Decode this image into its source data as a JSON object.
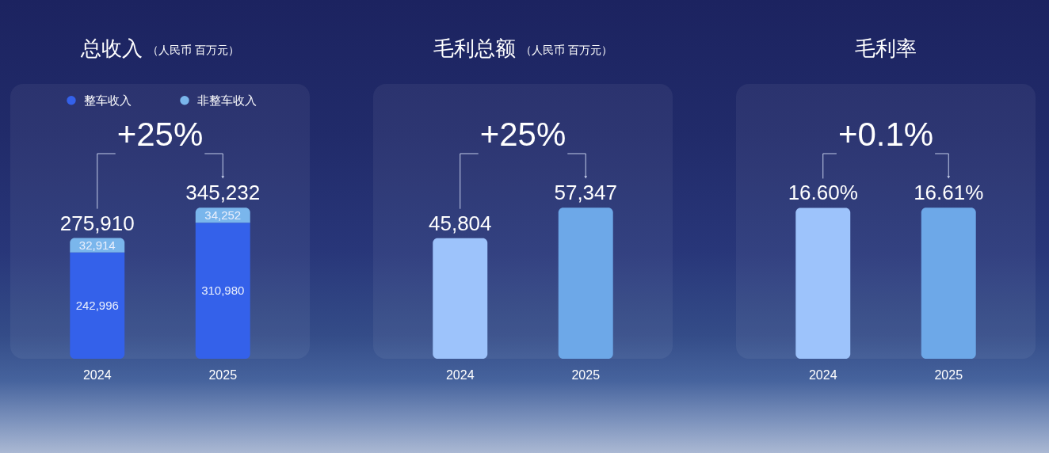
{
  "chart_data": [
    {
      "type": "bar",
      "title": "总收入",
      "subtitle": "（人民币 百万元）",
      "categories": [
        "2024",
        "2025"
      ],
      "stacked": true,
      "series": [
        {
          "name": "整车收入",
          "color": "#3461ea",
          "values": [
            242996,
            310980
          ],
          "value_labels": [
            "242,996",
            "310,980"
          ]
        },
        {
          "name": "非整车收入",
          "color": "#7ab6ec",
          "values": [
            32914,
            34252
          ],
          "value_labels": [
            "32,914",
            "34,252"
          ]
        }
      ],
      "totals": [
        "275,910",
        "345,232"
      ],
      "annotations": [
        "+25%"
      ],
      "legend": "top",
      "tick_labels": "x"
    },
    {
      "type": "bar",
      "title": "毛利总额",
      "subtitle": "（人民币 百万元）",
      "categories": [
        "2024",
        "2025"
      ],
      "values": [
        45804,
        57347
      ],
      "colors": [
        "#9dc3fb",
        "#6da8e8"
      ],
      "value_labels": [
        "45,804",
        "57,347"
      ],
      "annotations": [
        "+25%"
      ],
      "tick_labels": "x"
    },
    {
      "type": "bar",
      "title": "毛利率",
      "categories": [
        "2024",
        "2025"
      ],
      "values": [
        16.6,
        16.61
      ],
      "colors": [
        "#9dc3fb",
        "#6da8e8"
      ],
      "value_labels": [
        "16.60%",
        "16.61%"
      ],
      "annotations": [
        "+0.1%"
      ],
      "tick_labels": "x"
    }
  ]
}
